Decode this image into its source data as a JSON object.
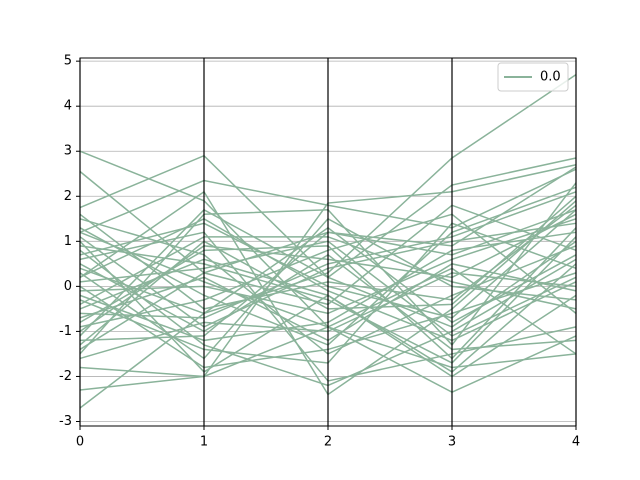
{
  "chart_data": {
    "type": "parallel",
    "x": [
      0,
      1,
      2,
      3,
      4
    ],
    "xlim": [
      0,
      4
    ],
    "xticks": [
      0,
      1,
      2,
      3,
      4
    ],
    "ylim": [
      -3.1,
      5.07
    ],
    "yticks": [
      -3,
      -2,
      -1,
      0,
      1,
      2,
      3,
      4,
      5
    ],
    "grid": true,
    "legend": "upper right",
    "series": [
      {
        "name": "0.0",
        "color": "#8ab39a",
        "values": [
          [
            -2.7,
            -0.6,
            0.3,
            2.85,
            4.7
          ],
          [
            3.0,
            1.9,
            -0.9,
            -1.8,
            -1.5
          ],
          [
            2.55,
            0.3,
            1.2,
            0.9,
            2.65
          ],
          [
            1.75,
            2.9,
            0.2,
            2.25,
            2.85
          ],
          [
            1.2,
            2.35,
            1.8,
            1.3,
            2.6
          ],
          [
            -2.3,
            -2.0,
            1.85,
            2.1,
            2.7
          ],
          [
            -1.8,
            -2.0,
            -0.9,
            -2.35,
            -1.1
          ],
          [
            0.2,
            2.1,
            -2.4,
            -0.5,
            1.9
          ],
          [
            -1.5,
            1.6,
            1.7,
            -1.3,
            2.3
          ],
          [
            1.0,
            -1.9,
            -0.2,
            -2.0,
            -0.2
          ],
          [
            0.6,
            1.2,
            -2.1,
            -1.5,
            -0.9
          ],
          [
            -0.3,
            -1.4,
            -1.7,
            1.4,
            0.4
          ],
          [
            0.9,
            0.5,
            -0.3,
            -1.7,
            1.1
          ],
          [
            -1.0,
            0.9,
            0.6,
            0.2,
            1.6
          ],
          [
            0.4,
            -0.6,
            1.3,
            -0.8,
            0.7
          ],
          [
            -0.7,
            0.2,
            -1.2,
            0.5,
            -0.1
          ],
          [
            1.1,
            -0.9,
            0.4,
            1.0,
            1.4
          ],
          [
            -1.3,
            1.0,
            -0.5,
            -0.4,
            2.0
          ],
          [
            0.1,
            0.4,
            1.0,
            -1.1,
            0.2
          ],
          [
            -0.2,
            -1.2,
            -0.8,
            0.8,
            1.2
          ],
          [
            1.5,
            0.7,
            -1.5,
            -0.2,
            0.9
          ],
          [
            -0.9,
            -0.3,
            0.8,
            1.6,
            -0.6
          ],
          [
            0.7,
            1.4,
            0.0,
            -0.7,
            1.7
          ],
          [
            -1.6,
            -0.8,
            -1.0,
            0.3,
            0.0
          ],
          [
            0.3,
            -1.6,
            1.5,
            0.0,
            -0.3
          ],
          [
            -0.5,
            0.6,
            -0.2,
            -1.9,
            0.5
          ],
          [
            1.3,
            -0.2,
            -1.3,
            1.2,
            2.2
          ],
          [
            -1.1,
            1.7,
            0.2,
            -0.9,
            1.0
          ],
          [
            0.5,
            -1.0,
            0.7,
            -1.4,
            -1.2
          ],
          [
            -0.1,
            0.0,
            -0.6,
            0.6,
            1.5
          ],
          [
            0.8,
            -1.3,
            -2.2,
            -1.0,
            0.6
          ],
          [
            -0.4,
            1.1,
            1.1,
            0.1,
            -0.5
          ],
          [
            1.6,
            -0.5,
            0.1,
            -0.3,
            1.8
          ],
          [
            -1.4,
            0.3,
            -0.4,
            1.8,
            0.8
          ],
          [
            0.0,
            -1.8,
            -1.4,
            -0.6,
            0.3
          ],
          [
            -0.8,
            0.8,
            0.9,
            -1.6,
            1.3
          ],
          [
            1.2,
            0.1,
            -0.9,
            0.4,
            -1.5
          ],
          [
            -0.6,
            -0.7,
            0.5,
            1.1,
            2.1
          ],
          [
            0.2,
            1.5,
            -0.1,
            -1.2,
            0.1
          ],
          [
            -1.2,
            -1.1,
            1.2,
            0.7,
            1.7
          ]
        ]
      }
    ]
  }
}
